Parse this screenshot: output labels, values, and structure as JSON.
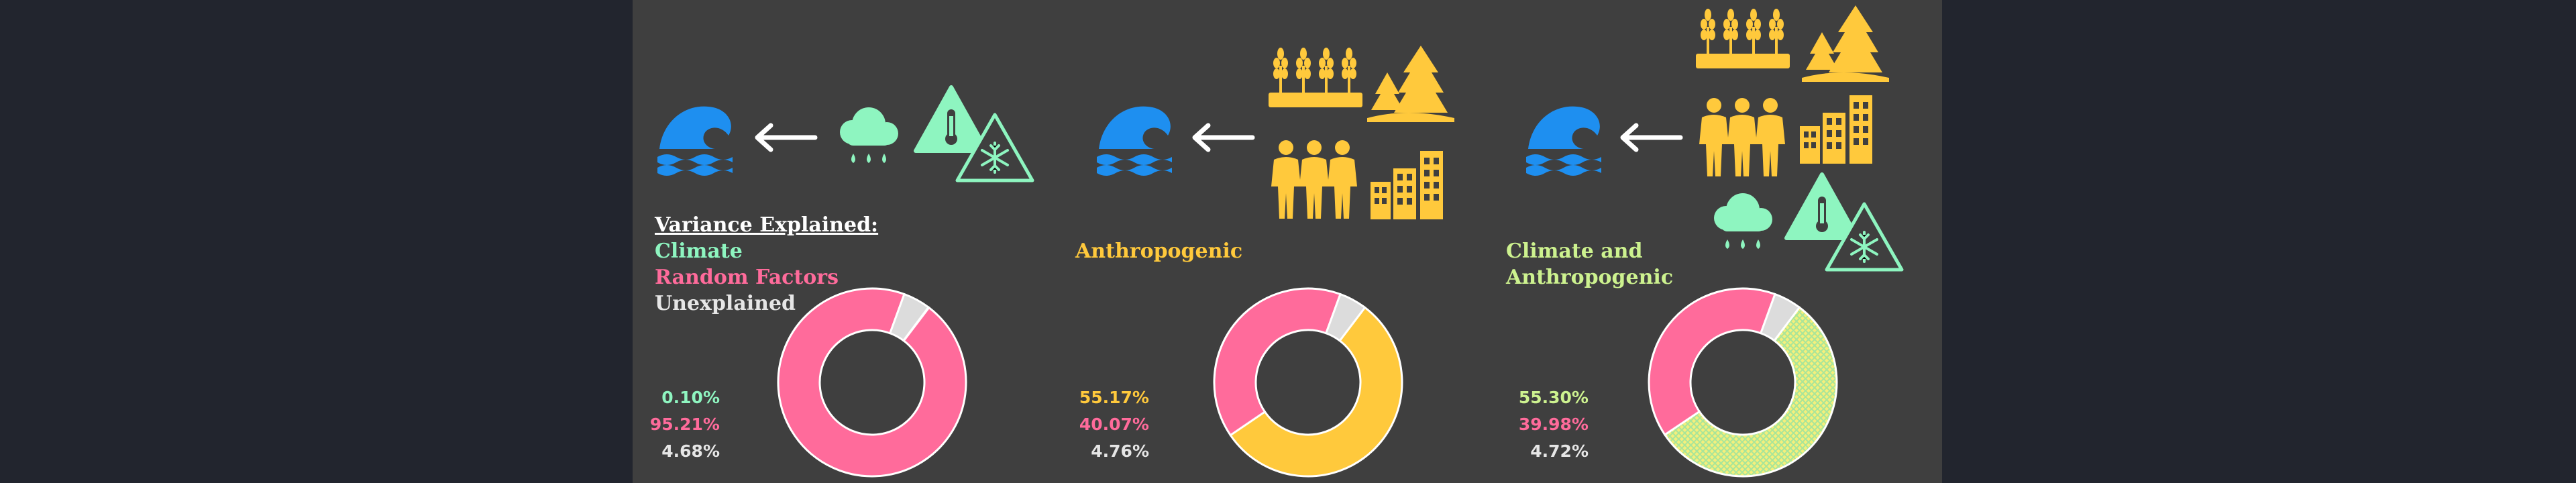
{
  "legend": {
    "title": "Variance Explained:",
    "items": [
      "Climate",
      "Random Factors",
      "Unexplained"
    ]
  },
  "colors": {
    "climate": "#8ef5c0",
    "random": "#ff6b9b",
    "unexplained": "#dcdcdc",
    "anthropogenic": "#ffc93c",
    "combined_base": "#f4ef7c",
    "combined_hatch": "#a8e59a",
    "water": "#1e8ff0",
    "arrow": "#ffffff"
  },
  "panels": [
    {
      "label": "",
      "icons": [
        "wave-icon",
        "arrow-left-icon",
        "rain-cloud-icon",
        "thermometer-warning-icon",
        "snowflake-warning-icon"
      ],
      "percent_labels": [
        "0.10%",
        "95.21%",
        "4.68%"
      ]
    },
    {
      "label": "Anthropogenic",
      "icons": [
        "wave-icon",
        "arrow-left-icon",
        "wheat-field-icon",
        "forest-icon",
        "people-icon",
        "city-icon"
      ],
      "percent_labels": [
        "55.17%",
        "40.07%",
        "4.76%"
      ]
    },
    {
      "label": "Climate and\nAnthropogenic",
      "label_lines": [
        "Climate and",
        "Anthropogenic"
      ],
      "icons": [
        "wave-icon",
        "arrow-left-icon",
        "wheat-field-icon",
        "forest-icon",
        "people-icon",
        "city-icon",
        "rain-cloud-icon",
        "thermometer-warning-icon",
        "snowflake-warning-icon"
      ],
      "percent_labels": [
        "55.30%",
        "39.98%",
        "4.72%"
      ]
    }
  ],
  "chart_data": [
    {
      "type": "pie",
      "donut": true,
      "labels": [
        "Climate",
        "Random Factors",
        "Unexplained"
      ],
      "values": [
        0.1,
        95.21,
        4.68
      ]
    },
    {
      "type": "pie",
      "donut": true,
      "labels": [
        "Anthropogenic",
        "Random Factors",
        "Unexplained"
      ],
      "values": [
        55.17,
        40.07,
        4.76
      ]
    },
    {
      "type": "pie",
      "donut": true,
      "labels": [
        "Climate and Anthropogenic",
        "Random Factors",
        "Unexplained"
      ],
      "values": [
        55.3,
        39.98,
        4.72
      ]
    }
  ]
}
